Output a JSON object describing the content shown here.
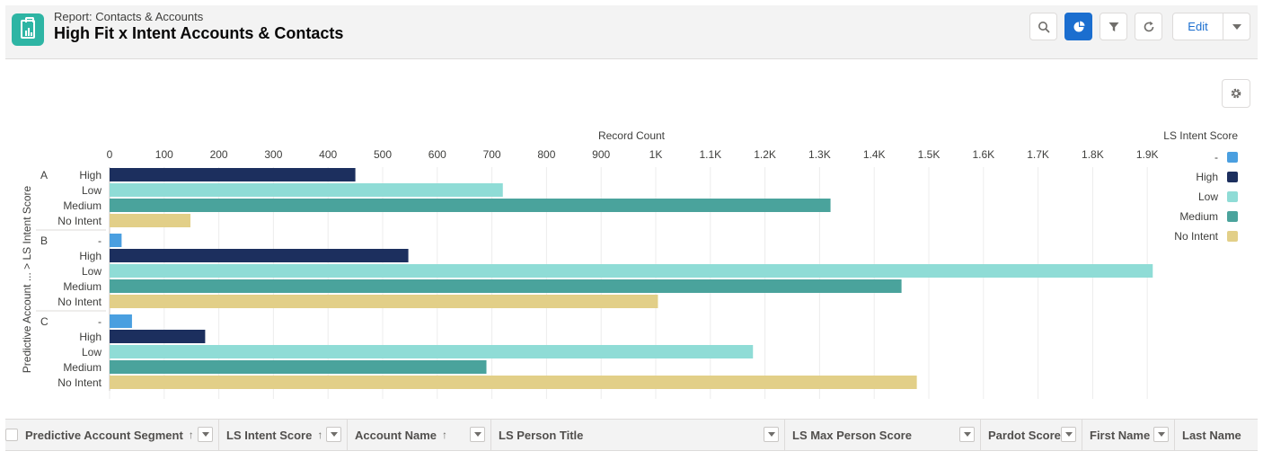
{
  "header": {
    "subtitle": "Report: Contacts & Accounts",
    "title": "High Fit x Intent Accounts & Contacts",
    "edit_label": "Edit"
  },
  "icons": {
    "app": "report-icon",
    "search": "search-icon",
    "chart": "chart-icon",
    "filter": "filter-icon",
    "refresh": "refresh-icon",
    "dropdown": "chevron-down-icon",
    "settings": "gear-icon"
  },
  "colors": {
    "dash": "#4a9fe0",
    "high": "#1c2f5e",
    "low": "#8fdcd6",
    "medium": "#4aa39c",
    "no_intent": "#e2cf88",
    "accent": "#1b6ecf",
    "app_icon": "#2eb5a4"
  },
  "chart_data": {
    "type": "bar",
    "orientation": "horizontal",
    "xlabel": "Record Count",
    "ylabel": "Predictive Account ... > LS Intent Score",
    "xlim": [
      0,
      1900
    ],
    "x_ticks": [
      "0",
      "100",
      "200",
      "300",
      "400",
      "500",
      "600",
      "700",
      "800",
      "900",
      "1K",
      "1.1K",
      "1.2K",
      "1.3K",
      "1.4K",
      "1.5K",
      "1.6K",
      "1.7K",
      "1.8K",
      "1.9K"
    ],
    "legend_title": "LS Intent Score",
    "legend_position": "right",
    "legend": [
      {
        "label": "-",
        "color": "#4a9fe0"
      },
      {
        "label": "High",
        "color": "#1c2f5e"
      },
      {
        "label": "Low",
        "color": "#8fdcd6"
      },
      {
        "label": "Medium",
        "color": "#4aa39c"
      },
      {
        "label": "No Intent",
        "color": "#e2cf88"
      }
    ],
    "groups": [
      {
        "name": "A",
        "bars": [
          {
            "label": "High",
            "value": 450,
            "color": "#1c2f5e"
          },
          {
            "label": "Low",
            "value": 720,
            "color": "#8fdcd6"
          },
          {
            "label": "Medium",
            "value": 1320,
            "color": "#4aa39c"
          },
          {
            "label": "No Intent",
            "value": 148,
            "color": "#e2cf88"
          }
        ]
      },
      {
        "name": "B",
        "bars": [
          {
            "label": "-",
            "value": 22,
            "color": "#4a9fe0"
          },
          {
            "label": "High",
            "value": 547,
            "color": "#1c2f5e"
          },
          {
            "label": "Low",
            "value": 1910,
            "color": "#8fdcd6"
          },
          {
            "label": "Medium",
            "value": 1450,
            "color": "#4aa39c"
          },
          {
            "label": "No Intent",
            "value": 1004,
            "color": "#e2cf88"
          }
        ]
      },
      {
        "name": "C",
        "bars": [
          {
            "label": "-",
            "value": 41,
            "color": "#4a9fe0"
          },
          {
            "label": "High",
            "value": 175,
            "color": "#1c2f5e"
          },
          {
            "label": "Low",
            "value": 1178,
            "color": "#8fdcd6"
          },
          {
            "label": "Medium",
            "value": 690,
            "color": "#4aa39c"
          },
          {
            "label": "No Intent",
            "value": 1478,
            "color": "#e2cf88"
          }
        ]
      }
    ]
  },
  "table": {
    "columns": [
      {
        "label": "Predictive Account Segment",
        "sort": "↑",
        "filter": true
      },
      {
        "label": "LS Intent Score",
        "sort": "↑",
        "filter": true
      },
      {
        "label": "Account Name",
        "sort": "↑",
        "filter": true
      },
      {
        "label": "LS Person Title",
        "sort": "",
        "filter": true
      },
      {
        "label": "LS Max Person Score",
        "sort": "",
        "filter": true
      },
      {
        "label": "Pardot Score",
        "sort": "",
        "filter": true
      },
      {
        "label": "First Name",
        "sort": "",
        "filter": true
      },
      {
        "label": "Last Name",
        "sort": "",
        "filter": false
      }
    ]
  }
}
